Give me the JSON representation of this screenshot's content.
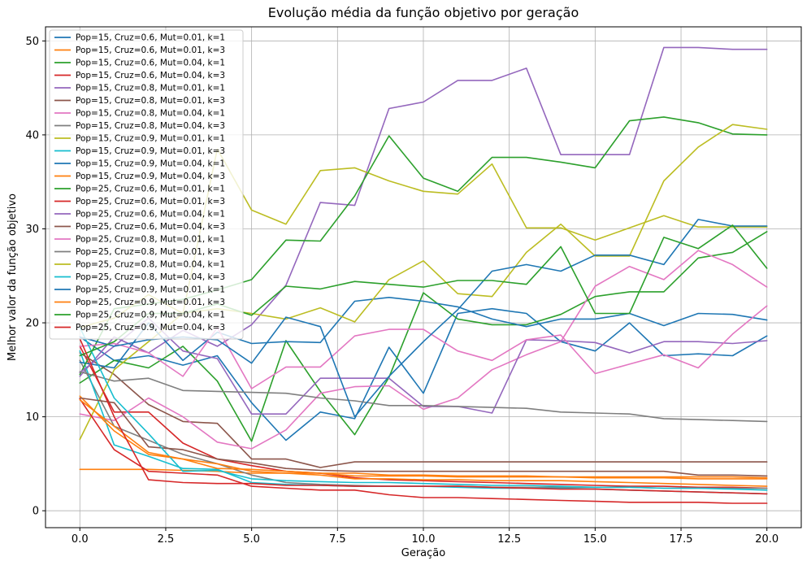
{
  "chart_data": {
    "type": "line",
    "title": "Evolução média da função objetivo por geração",
    "xlabel": "Geração",
    "ylabel": "Melhor valor da função objetivo",
    "xlim": [
      -1,
      21
    ],
    "ylim": [
      -1.8,
      51.5
    ],
    "xticks": [
      0.0,
      2.5,
      5.0,
      7.5,
      10.0,
      12.5,
      15.0,
      17.5,
      20.0
    ],
    "xtick_labels": [
      "0.0",
      "2.5",
      "5.0",
      "7.5",
      "10.0",
      "12.5",
      "15.0",
      "17.5",
      "20.0"
    ],
    "yticks": [
      0,
      10,
      20,
      30,
      40,
      50
    ],
    "ytick_labels": [
      "0",
      "10",
      "20",
      "30",
      "40",
      "50"
    ],
    "grid": true,
    "legend_position": "upper-left",
    "x": [
      0,
      1,
      2,
      3,
      4,
      5,
      6,
      7,
      8,
      9,
      10,
      11,
      12,
      13,
      14,
      15,
      16,
      17,
      18,
      19,
      20
    ],
    "series": [
      {
        "name": "Pop=15, Cruz=0.6, Mut=0.01, k=1",
        "color": "#1f77b4",
        "values": [
          18.5,
          16.0,
          16.5,
          15.5,
          16.5,
          11.5,
          7.5,
          10.5,
          9.8,
          17.4,
          12.5,
          21.0,
          21.5,
          21.0,
          18.0,
          17.0,
          20.0,
          16.5,
          16.7,
          16.5,
          18.6
        ]
      },
      {
        "name": "Pop=15, Cruz=0.6, Mut=0.01, k=3",
        "color": "#ff7f0e",
        "values": [
          4.4,
          4.4,
          4.4,
          4.3,
          4.2,
          4.0,
          4.0,
          4.0,
          4.0,
          3.8,
          3.8,
          3.7,
          3.7,
          3.7,
          3.6,
          3.6,
          3.6,
          3.6,
          3.6,
          3.6,
          3.5
        ]
      },
      {
        "name": "Pop=15, Cruz=0.6, Mut=0.04, k=1",
        "color": "#2ca02c",
        "values": [
          13.6,
          16.0,
          15.2,
          17.5,
          13.8,
          7.4,
          18.1,
          12.7,
          8.1,
          14.2,
          23.2,
          20.4,
          19.8,
          19.8,
          20.9,
          22.8,
          23.3,
          23.3,
          26.9,
          27.5,
          29.7
        ]
      },
      {
        "name": "Pop=15, Cruz=0.6, Mut=0.04, k=3",
        "color": "#d62728",
        "values": [
          17.5,
          10.5,
          10.5,
          7.2,
          5.5,
          4.8,
          4.2,
          4.0,
          3.5,
          3.3,
          3.2,
          3.1,
          3.0,
          2.9,
          2.8,
          2.7,
          2.6,
          2.6,
          2.5,
          2.5,
          2.4
        ]
      },
      {
        "name": "Pop=15, Cruz=0.8, Mut=0.01, k=1",
        "color": "#9467bd",
        "values": [
          14.3,
          18.5,
          16.8,
          19.2,
          17.5,
          19.8,
          24.0,
          32.8,
          32.5,
          42.8,
          43.5,
          45.8,
          45.8,
          47.1,
          37.9,
          37.9,
          37.9,
          49.3,
          49.3,
          49.1,
          49.1
        ]
      },
      {
        "name": "Pop=15, Cruz=0.8, Mut=0.01, k=3",
        "color": "#8c564b",
        "values": [
          16.8,
          14.5,
          11.3,
          9.5,
          9.3,
          5.5,
          5.5,
          4.6,
          5.2,
          5.2,
          5.2,
          5.2,
          5.2,
          5.2,
          5.2,
          5.2,
          5.2,
          5.2,
          5.2,
          5.2,
          5.2
        ]
      },
      {
        "name": "Pop=15, Cruz=0.8, Mut=0.04, k=1",
        "color": "#e377c2",
        "values": [
          10.3,
          9.6,
          12.0,
          10.0,
          7.3,
          6.6,
          8.6,
          12.5,
          13.2,
          13.3,
          10.8,
          12.0,
          15.0,
          16.6,
          18.0,
          23.9,
          26.0,
          24.6,
          27.7,
          26.2,
          23.8
        ]
      },
      {
        "name": "Pop=15, Cruz=0.8, Mut=0.04, k=3",
        "color": "#7f7f7f",
        "values": [
          16.0,
          9.0,
          7.5,
          6.0,
          5.0,
          3.8,
          3.0,
          2.8,
          2.7,
          2.6,
          2.6,
          2.6,
          2.5,
          2.5,
          2.5,
          2.5,
          2.5,
          2.4,
          2.4,
          2.4,
          2.4
        ]
      },
      {
        "name": "Pop=15, Cruz=0.9, Mut=0.01, k=1",
        "color": "#bcbd22",
        "values": [
          7.6,
          15.0,
          18.0,
          21.0,
          38.5,
          32.0,
          30.5,
          36.2,
          36.5,
          35.1,
          34.0,
          33.7,
          36.9,
          30.1,
          30.1,
          28.8,
          30.1,
          31.4,
          30.2,
          30.2,
          30.2
        ]
      },
      {
        "name": "Pop=15, Cruz=0.9, Mut=0.01, k=3",
        "color": "#17becf",
        "values": [
          17.0,
          7.0,
          5.8,
          4.5,
          4.4,
          3.0,
          2.8,
          2.7,
          2.6,
          2.6,
          2.6,
          2.5,
          2.4,
          2.4,
          2.4,
          2.3,
          2.2,
          2.1,
          2.0,
          1.9,
          1.8
        ]
      },
      {
        "name": "Pop=15, Cruz=0.9, Mut=0.04, k=1",
        "color": "#1f77b4",
        "values": [
          15.8,
          15.2,
          20.0,
          16.0,
          19.0,
          17.8,
          18.0,
          17.9,
          22.3,
          22.7,
          22.3,
          21.7,
          20.4,
          19.6,
          20.4,
          20.4,
          21.0,
          19.7,
          21.0,
          20.9,
          20.3
        ]
      },
      {
        "name": "Pop=15, Cruz=0.9, Mut=0.04, k=3",
        "color": "#ff7f0e",
        "values": [
          12.2,
          8.5,
          6.0,
          5.5,
          4.5,
          4.4,
          4.2,
          4.0,
          3.7,
          3.7,
          3.7,
          3.6,
          3.6,
          3.6,
          3.6,
          3.5,
          3.5,
          3.5,
          3.4,
          3.4,
          3.4
        ]
      },
      {
        "name": "Pop=25, Cruz=0.6, Mut=0.01, k=1",
        "color": "#2ca02c",
        "values": [
          14.5,
          21.5,
          22.0,
          22.5,
          23.5,
          24.6,
          28.8,
          28.7,
          33.5,
          39.9,
          35.4,
          34.0,
          37.6,
          37.6,
          37.1,
          36.5,
          41.5,
          41.9,
          41.3,
          40.1,
          40.0
        ]
      },
      {
        "name": "Pop=25, Cruz=0.6, Mut=0.01, k=3",
        "color": "#d62728",
        "values": [
          11.9,
          6.5,
          4.2,
          4.0,
          3.8,
          2.6,
          2.4,
          2.2,
          2.2,
          1.7,
          1.4,
          1.4,
          1.3,
          1.2,
          1.1,
          1.0,
          0.9,
          0.9,
          0.9,
          0.8,
          0.8
        ]
      },
      {
        "name": "Pop=25, Cruz=0.6, Mut=0.04, k=1",
        "color": "#9467bd",
        "values": [
          14.7,
          17.5,
          20.5,
          17.0,
          16.2,
          10.3,
          10.3,
          14.1,
          14.1,
          14.1,
          11.1,
          11.1,
          10.4,
          18.2,
          18.1,
          17.9,
          16.8,
          18.0,
          18.0,
          17.8,
          18.1
        ]
      },
      {
        "name": "Pop=25, Cruz=0.6, Mut=0.04, k=3",
        "color": "#8c564b",
        "values": [
          12.0,
          11.5,
          6.8,
          6.5,
          5.5,
          5.1,
          4.5,
          4.3,
          4.2,
          4.2,
          4.2,
          4.2,
          4.2,
          4.2,
          4.2,
          4.2,
          4.2,
          4.2,
          3.8,
          3.8,
          3.7
        ]
      },
      {
        "name": "Pop=25, Cruz=0.8, Mut=0.01, k=1",
        "color": "#e377c2",
        "values": [
          17.5,
          17.8,
          16.8,
          14.3,
          19.5,
          13.0,
          15.3,
          15.3,
          18.6,
          19.3,
          19.3,
          17.0,
          16.0,
          18.2,
          18.7,
          14.6,
          15.6,
          16.6,
          15.2,
          18.8,
          21.8
        ]
      },
      {
        "name": "Pop=25, Cruz=0.8, Mut=0.01, k=3",
        "color": "#7f7f7f",
        "values": [
          14.8,
          13.8,
          14.1,
          12.8,
          12.7,
          12.6,
          12.5,
          12.0,
          11.7,
          11.2,
          11.2,
          11.1,
          11.0,
          10.9,
          10.5,
          10.4,
          10.3,
          9.8,
          9.7,
          9.6,
          9.5
        ]
      },
      {
        "name": "Pop=25, Cruz=0.8, Mut=0.04, k=1",
        "color": "#bcbd22",
        "values": [
          19.5,
          20.5,
          23.0,
          21.0,
          21.5,
          21.0,
          20.4,
          21.6,
          20.1,
          24.6,
          26.6,
          23.1,
          22.8,
          27.5,
          30.5,
          27.1,
          27.1,
          35.1,
          38.7,
          41.1,
          40.6
        ]
      },
      {
        "name": "Pop=25, Cruz=0.8, Mut=0.04, k=3",
        "color": "#17becf",
        "values": [
          19.5,
          12.0,
          8.2,
          4.2,
          4.3,
          3.4,
          3.2,
          3.1,
          3.0,
          3.0,
          2.9,
          2.8,
          2.7,
          2.7,
          2.6,
          2.5,
          2.5,
          2.4,
          2.4,
          2.3,
          2.2
        ]
      },
      {
        "name": "Pop=25, Cruz=0.9, Mut=0.01, k=1",
        "color": "#1f77b4",
        "values": [
          18.5,
          17.5,
          18.2,
          18.5,
          18.2,
          15.7,
          20.6,
          19.6,
          10.0,
          14.3,
          18.0,
          21.4,
          25.5,
          26.2,
          25.5,
          27.2,
          27.2,
          26.2,
          31.0,
          30.3,
          30.3
        ]
      },
      {
        "name": "Pop=25, Cruz=0.9, Mut=0.01, k=3",
        "color": "#ff7f0e",
        "values": [
          11.8,
          9.0,
          6.2,
          5.5,
          5.0,
          4.2,
          4.0,
          3.8,
          3.4,
          3.4,
          3.3,
          3.3,
          3.2,
          3.2,
          3.2,
          3.1,
          3.0,
          2.9,
          2.8,
          2.7,
          2.6
        ]
      },
      {
        "name": "Pop=25, Cruz=0.9, Mut=0.04, k=1",
        "color": "#2ca02c",
        "values": [
          16.5,
          18.0,
          21.0,
          21.0,
          22.0,
          20.8,
          23.9,
          23.6,
          24.4,
          24.1,
          23.8,
          24.5,
          24.5,
          24.1,
          28.1,
          21.0,
          21.0,
          29.1,
          27.9,
          30.4,
          25.8
        ]
      },
      {
        "name": "Pop=25, Cruz=0.9, Mut=0.04, k=3",
        "color": "#d62728",
        "values": [
          18.3,
          10.0,
          3.3,
          3.0,
          2.9,
          2.9,
          2.7,
          2.7,
          2.6,
          2.6,
          2.6,
          2.6,
          2.5,
          2.4,
          2.3,
          2.3,
          2.2,
          2.1,
          2.0,
          1.9,
          1.8
        ]
      }
    ]
  }
}
